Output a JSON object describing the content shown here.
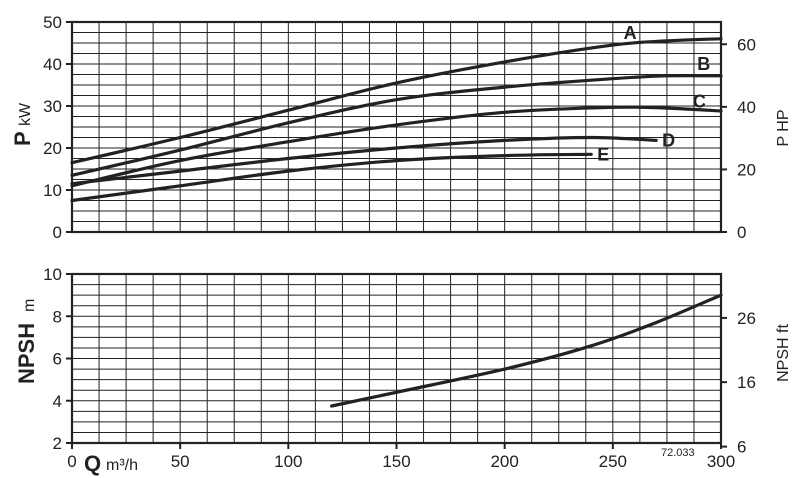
{
  "chart_data": [
    {
      "type": "line",
      "name": "power",
      "ylabel_bold": "P",
      "ylabel_unit": "kW",
      "y2label": "P HP",
      "ylim": [
        0,
        50
      ],
      "y_ticks": [
        "0",
        "10",
        "20",
        "30",
        "40",
        "50"
      ],
      "y2_ticks": [
        "0",
        "20",
        "40",
        "60"
      ],
      "y2_tick_values_left_units": [
        0,
        14.9,
        29.8,
        44.7
      ],
      "xlim": [
        0,
        300
      ],
      "series": [
        {
          "name": "A",
          "x": [
            0,
            50,
            100,
            150,
            200,
            250,
            275,
            300
          ],
          "y": [
            16.5,
            22.5,
            29,
            35.5,
            40.5,
            44.5,
            45.5,
            46
          ]
        },
        {
          "name": "B",
          "x": [
            0,
            50,
            100,
            150,
            200,
            250,
            275,
            300
          ],
          "y": [
            13.5,
            19.5,
            26,
            31.5,
            34.5,
            36.5,
            37.2,
            37.2
          ]
        },
        {
          "name": "C",
          "x": [
            0,
            50,
            100,
            150,
            200,
            250,
            275,
            300
          ],
          "y": [
            11,
            17,
            21.5,
            25.5,
            28.5,
            29.7,
            29.5,
            28.8
          ]
        },
        {
          "name": "D",
          "x": [
            0,
            50,
            100,
            150,
            200,
            240,
            270
          ],
          "y": [
            11.5,
            14.5,
            17.5,
            20,
            21.8,
            22.5,
            21.8
          ]
        },
        {
          "name": "E",
          "x": [
            0,
            50,
            100,
            150,
            200,
            240
          ],
          "y": [
            7.5,
            11,
            14.5,
            17,
            18.2,
            18.5
          ]
        }
      ]
    },
    {
      "type": "line",
      "name": "npsh",
      "ylabel_bold": "NPSH",
      "ylabel_unit": "m",
      "y2label": "NPSH ft",
      "ylim": [
        2,
        10
      ],
      "y_ticks": [
        "2",
        "4",
        "6",
        "8",
        "10"
      ],
      "y2_ticks": [
        "6",
        "16",
        "26"
      ],
      "y2_tick_values_left_units": [
        1.83,
        4.88,
        7.92
      ],
      "xlabel_bold": "Q",
      "xlabel_unit": "m³/h",
      "xlim": [
        0,
        300
      ],
      "x_ticks": [
        "0",
        "50",
        "100",
        "150",
        "200",
        "250",
        "300"
      ],
      "series": [
        {
          "name": "NPSH",
          "x": [
            120,
            150,
            200,
            240,
            270,
            300
          ],
          "y": [
            3.75,
            4.4,
            5.5,
            6.6,
            7.7,
            9
          ]
        }
      ]
    }
  ],
  "figure_code": "72.033"
}
